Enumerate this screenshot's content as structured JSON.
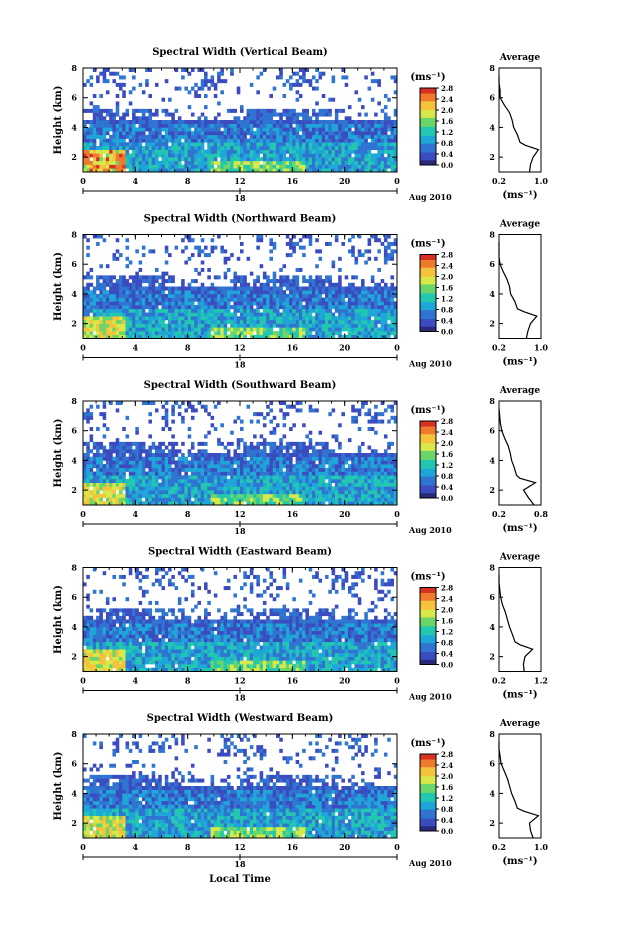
{
  "figure": {
    "xlabel_shared": "Local Time",
    "height_label": "Height (km)",
    "unit_label": "(ms⁻¹)",
    "date_label": "Aug 2010",
    "colorbar_ticks": [
      "0.0",
      "0.4",
      "0.8",
      "1.2",
      "1.6",
      "2.0",
      "2.4",
      "2.8"
    ],
    "colormap": [
      "#ffffff",
      "#2a2a7a",
      "#3b4cc0",
      "#2f74d0",
      "#1ea6d8",
      "#22c7b0",
      "#6ad66a",
      "#d7e84a",
      "#f5c23c",
      "#f07a2c",
      "#d93024"
    ],
    "show_local_time_label_under_last": true
  },
  "chart_data": [
    {
      "type": "heatmap",
      "title": "Spectral Width (Vertical Beam)",
      "ylabel": "Height (km)",
      "xlabel": "Local Time",
      "x_ticks": [
        "0",
        "4",
        "8",
        "12",
        "16",
        "20",
        "0"
      ],
      "x_mid_label": "18",
      "y_ticks": [
        "2",
        "4",
        "6",
        "8"
      ],
      "ylim": [
        1,
        8
      ],
      "xlim": [
        0,
        24
      ],
      "colorbar": {
        "label": "(ms⁻¹)",
        "ticks": [
          "0.0",
          "0.4",
          "0.8",
          "1.2",
          "1.6",
          "2.0",
          "2.4",
          "2.8"
        ],
        "range": [
          0,
          2.8
        ]
      },
      "date": "Aug 2010",
      "profile": {
        "title": "Average",
        "xlabel": "(ms⁻¹)",
        "x_ticks": [
          "0.2",
          "1.0"
        ],
        "y_ticks": [
          "2",
          "4",
          "6",
          "8"
        ],
        "xlim": [
          0.2,
          1.0
        ],
        "ylim": [
          1,
          8
        ],
        "heights": [
          1.0,
          1.5,
          2.0,
          2.5,
          2.8,
          3.0,
          3.5,
          4.0,
          4.5,
          5.0,
          5.5,
          6.0,
          6.5,
          7.0,
          7.5
        ],
        "values": [
          0.78,
          0.8,
          0.85,
          0.95,
          0.7,
          0.6,
          0.55,
          0.48,
          0.45,
          0.4,
          0.3,
          0.22,
          0.22,
          0.2,
          0.18
        ]
      }
    },
    {
      "type": "heatmap",
      "title": "Spectral Width (Northward Beam)",
      "ylabel": "Height (km)",
      "xlabel": "Local Time",
      "x_ticks": [
        "0",
        "4",
        "8",
        "12",
        "16",
        "20",
        "0"
      ],
      "x_mid_label": "18",
      "y_ticks": [
        "2",
        "4",
        "6",
        "8"
      ],
      "ylim": [
        1,
        8
      ],
      "xlim": [
        0,
        24
      ],
      "colorbar": {
        "label": "(ms⁻¹)",
        "ticks": [
          "0.0",
          "0.4",
          "0.8",
          "1.2",
          "1.6",
          "2.0",
          "2.4",
          "2.8"
        ],
        "range": [
          0,
          2.8
        ]
      },
      "date": "Aug 2010",
      "profile": {
        "title": "Average",
        "xlabel": "(ms⁻¹)",
        "x_ticks": [
          "0.2",
          "1.0"
        ],
        "y_ticks": [
          "2",
          "4",
          "6",
          "8"
        ],
        "xlim": [
          0.2,
          1.0
        ],
        "ylim": [
          1,
          8
        ],
        "heights": [
          1.0,
          1.5,
          2.0,
          2.5,
          2.8,
          3.0,
          3.5,
          4.0,
          4.5,
          5.0,
          5.5,
          6.0,
          6.5,
          7.0,
          7.5
        ],
        "values": [
          0.72,
          0.75,
          0.8,
          0.92,
          0.68,
          0.55,
          0.5,
          0.42,
          0.4,
          0.35,
          0.28,
          0.22,
          0.2,
          0.18,
          0.17
        ]
      }
    },
    {
      "type": "heatmap",
      "title": "Spectral Width (Southward Beam)",
      "ylabel": "Height (km)",
      "xlabel": "Local Time",
      "x_ticks": [
        "0",
        "4",
        "8",
        "12",
        "16",
        "20",
        "0"
      ],
      "x_mid_label": "18",
      "y_ticks": [
        "2",
        "4",
        "6",
        "8"
      ],
      "ylim": [
        1,
        8
      ],
      "xlim": [
        0,
        24
      ],
      "colorbar": {
        "label": "(ms⁻¹)",
        "ticks": [
          "0.0",
          "0.4",
          "0.8",
          "1.2",
          "1.6",
          "2.0",
          "2.4",
          "2.8"
        ],
        "range": [
          0,
          2.8
        ]
      },
      "date": "Aug 2010",
      "profile": {
        "title": "Average",
        "xlabel": "(ms⁻¹)",
        "x_ticks": [
          "0.2",
          "0.8"
        ],
        "y_ticks": [
          "2",
          "4",
          "6",
          "8"
        ],
        "xlim": [
          0.2,
          0.8
        ],
        "ylim": [
          1,
          8
        ],
        "heights": [
          1.0,
          1.5,
          2.0,
          2.5,
          2.8,
          3.0,
          3.5,
          4.0,
          4.5,
          5.0,
          5.5,
          6.0,
          6.5,
          7.0,
          7.5
        ],
        "values": [
          0.7,
          0.62,
          0.55,
          0.72,
          0.5,
          0.45,
          0.42,
          0.38,
          0.36,
          0.33,
          0.28,
          0.24,
          0.22,
          0.21,
          0.2
        ]
      }
    },
    {
      "type": "heatmap",
      "title": "Spectral Width (Eastward Beam)",
      "ylabel": "Height (km)",
      "xlabel": "Local Time",
      "x_ticks": [
        "0",
        "4",
        "8",
        "12",
        "16",
        "20",
        "0"
      ],
      "x_mid_label": "18",
      "y_ticks": [
        "2",
        "4",
        "6",
        "8"
      ],
      "ylim": [
        1,
        8
      ],
      "xlim": [
        0,
        24
      ],
      "colorbar": {
        "label": "(ms⁻¹)",
        "ticks": [
          "0.0",
          "0.4",
          "0.8",
          "1.2",
          "1.6",
          "2.0",
          "2.4",
          "2.8"
        ],
        "range": [
          0,
          2.8
        ]
      },
      "date": "Aug 2010",
      "profile": {
        "title": "Average",
        "xlabel": "(ms⁻¹)",
        "x_ticks": [
          "0.2",
          "1.2"
        ],
        "y_ticks": [
          "2",
          "4",
          "6",
          "8"
        ],
        "xlim": [
          0.2,
          1.2
        ],
        "ylim": [
          1,
          8
        ],
        "heights": [
          1.0,
          1.5,
          2.0,
          2.5,
          2.8,
          3.0,
          3.5,
          4.0,
          4.5,
          5.0,
          5.5,
          6.0,
          6.5,
          7.0,
          7.5
        ],
        "values": [
          0.8,
          0.78,
          0.82,
          1.0,
          0.7,
          0.58,
          0.52,
          0.45,
          0.4,
          0.35,
          0.28,
          0.24,
          0.22,
          0.2,
          0.18
        ]
      }
    },
    {
      "type": "heatmap",
      "title": "Spectral Width (Westward Beam)",
      "ylabel": "Height (km)",
      "xlabel": "Local Time",
      "x_ticks": [
        "0",
        "4",
        "8",
        "12",
        "16",
        "20",
        "0"
      ],
      "x_mid_label": "18",
      "y_ticks": [
        "2",
        "4",
        "6",
        "8"
      ],
      "ylim": [
        1,
        8
      ],
      "xlim": [
        0,
        24
      ],
      "colorbar": {
        "label": "(ms⁻¹)",
        "ticks": [
          "0.0",
          "0.4",
          "0.8",
          "1.2",
          "1.6",
          "2.0",
          "2.4",
          "2.8"
        ],
        "range": [
          0,
          2.8
        ]
      },
      "date": "Aug 2010",
      "profile": {
        "title": "Average",
        "xlabel": "(ms⁻¹)",
        "x_ticks": [
          "0.2",
          "1.0"
        ],
        "y_ticks": [
          "2",
          "4",
          "6",
          "8"
        ],
        "xlim": [
          0.2,
          1.0
        ],
        "ylim": [
          1,
          8
        ],
        "heights": [
          1.0,
          1.5,
          2.0,
          2.5,
          2.8,
          3.0,
          3.5,
          4.0,
          4.5,
          5.0,
          5.5,
          6.0,
          6.5,
          7.0,
          7.5
        ],
        "values": [
          0.85,
          0.8,
          0.78,
          0.95,
          0.68,
          0.55,
          0.5,
          0.44,
          0.4,
          0.36,
          0.3,
          0.24,
          0.22,
          0.2,
          0.18
        ]
      }
    }
  ]
}
